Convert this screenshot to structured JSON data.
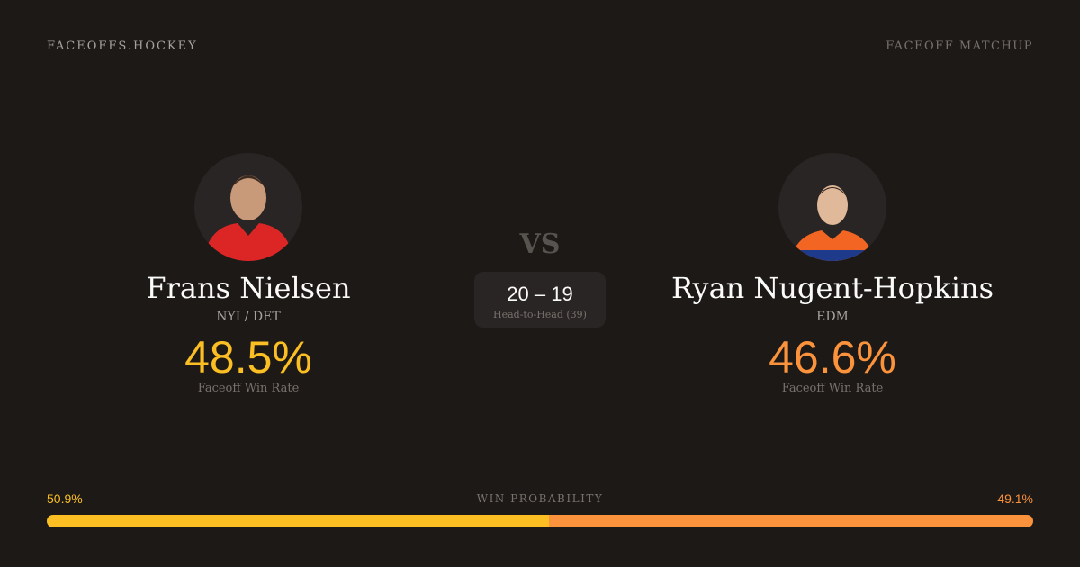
{
  "header": {
    "brand": "FACEOFFS.HOCKEY",
    "tag": "FACEOFF MATCHUP"
  },
  "colors": {
    "player1": "#fbbf24",
    "player2": "#fb923c",
    "background": "#1c1917"
  },
  "player1": {
    "name": "Frans Nielsen",
    "team": "NYI / DET",
    "win_rate": "48.5%",
    "win_rate_label": "Faceoff Win Rate",
    "jersey_color": "#dc2626"
  },
  "player2": {
    "name": "Ryan Nugent-Hopkins",
    "team": "EDM",
    "win_rate": "46.6%",
    "win_rate_label": "Faceoff Win Rate",
    "jersey_color": "#f26522"
  },
  "vs": "VS",
  "head_to_head": {
    "score": "20 – 19",
    "label": "Head-to-Head (39)"
  },
  "win_probability": {
    "title": "WIN PROBABILITY",
    "player1_label": "50.9%",
    "player2_label": "49.1%",
    "player1_value": 50.9,
    "player2_value": 49.1
  }
}
